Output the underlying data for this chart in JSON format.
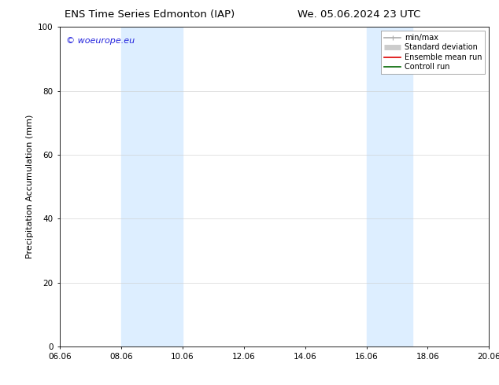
{
  "title_left": "ENS Time Series Edmonton (IAP)",
  "title_right": "We. 05.06.2024 23 UTC",
  "ylabel": "Precipitation Accumulation (mm)",
  "ylim": [
    0,
    100
  ],
  "yticks": [
    0,
    20,
    40,
    60,
    80,
    100
  ],
  "xtick_labels": [
    "06.06",
    "08.06",
    "10.06",
    "12.06",
    "14.06",
    "16.06",
    "18.06",
    "20.06"
  ],
  "xtick_positions": [
    0,
    2,
    4,
    6,
    8,
    10,
    12,
    14
  ],
  "xlim": [
    0,
    14
  ],
  "shaded_regions": [
    {
      "x_start": 2,
      "x_end": 4,
      "color": "#ddeeff"
    },
    {
      "x_start": 10,
      "x_end": 11.5,
      "color": "#ddeeff"
    }
  ],
  "watermark_text": "© woeurope.eu",
  "watermark_color": "#2222dd",
  "legend_items": [
    {
      "label": "min/max",
      "color": "#aaaaaa",
      "lw": 1.2
    },
    {
      "label": "Standard deviation",
      "color": "#cccccc",
      "lw": 5
    },
    {
      "label": "Ensemble mean run",
      "color": "#dd0000",
      "lw": 1.2
    },
    {
      "label": "Controll run",
      "color": "#006600",
      "lw": 1.2
    }
  ],
  "background_color": "#ffffff",
  "plot_bg_color": "#ffffff",
  "title_fontsize": 9.5,
  "axis_label_fontsize": 8,
  "tick_fontsize": 7.5,
  "legend_fontsize": 7,
  "watermark_fontsize": 8
}
